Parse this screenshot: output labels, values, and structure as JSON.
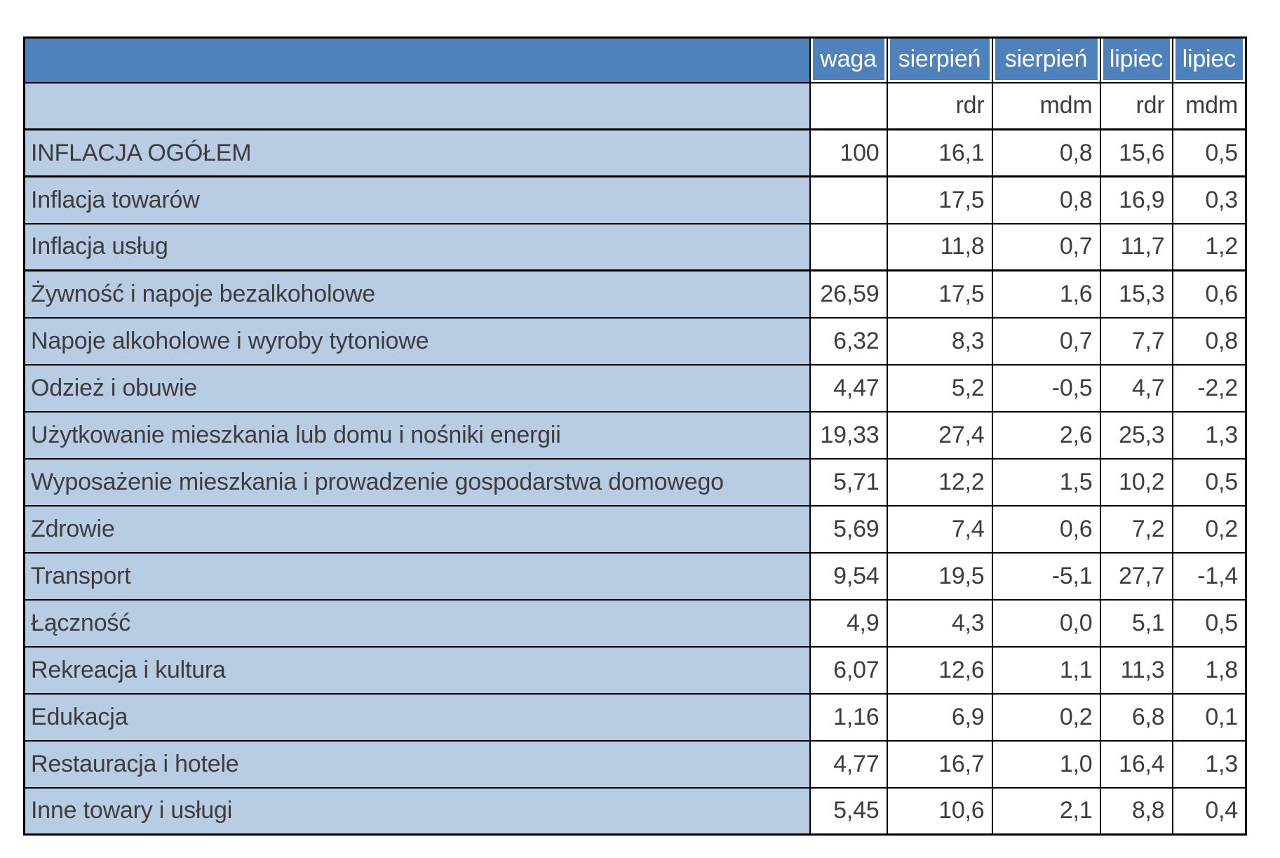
{
  "chart_data": {
    "type": "table",
    "description": "Polish CPI inflation table: component weights and rdr (year-over-year) / mdm (month-over-month) changes for sierpień (August) and lipiec (July)",
    "column_groups": [
      "waga",
      "sierpień",
      "sierpień",
      "lipiec",
      "lipiec"
    ],
    "column_measures": [
      "",
      "rdr",
      "mdm",
      "rdr",
      "mdm"
    ],
    "rows": [
      {
        "label": "INFLACJA OGÓŁEM",
        "cells": [
          "100",
          "16,1",
          "0,8",
          "15,6",
          "0,5"
        ],
        "thick_bottom": true
      },
      {
        "label": "Inflacja towarów",
        "cells": [
          "",
          "17,5",
          "0,8",
          "16,9",
          "0,3"
        ],
        "thick_bottom": false
      },
      {
        "label": "Inflacja usług",
        "cells": [
          "",
          "11,8",
          "0,7",
          "11,7",
          "1,2"
        ],
        "thick_bottom": true
      },
      {
        "label": "Żywność i napoje bezalkoholowe",
        "cells": [
          "26,59",
          "17,5",
          "1,6",
          "15,3",
          "0,6"
        ],
        "thick_bottom": false
      },
      {
        "label": "Napoje alkoholowe i wyroby tytoniowe",
        "cells": [
          "6,32",
          "8,3",
          "0,7",
          "7,7",
          "0,8"
        ],
        "thick_bottom": false
      },
      {
        "label": "Odzież i obuwie",
        "cells": [
          "4,47",
          "5,2",
          "-0,5",
          "4,7",
          "-2,2"
        ],
        "thick_bottom": false
      },
      {
        "label": "Użytkowanie mieszkania lub domu i nośniki energii",
        "cells": [
          "19,33",
          "27,4",
          "2,6",
          "25,3",
          "1,3"
        ],
        "thick_bottom": false
      },
      {
        "label": "Wyposażenie mieszkania i prowadzenie gospodarstwa domowego",
        "cells": [
          "5,71",
          "12,2",
          "1,5",
          "10,2",
          "0,5"
        ],
        "thick_bottom": false
      },
      {
        "label": "Zdrowie",
        "cells": [
          "5,69",
          "7,4",
          "0,6",
          "7,2",
          "0,2"
        ],
        "thick_bottom": false
      },
      {
        "label": "Transport",
        "cells": [
          "9,54",
          "19,5",
          "-5,1",
          "27,7",
          "-1,4"
        ],
        "thick_bottom": false
      },
      {
        "label": "Łączność",
        "cells": [
          "4,9",
          "4,3",
          "0,0",
          "5,1",
          "0,5"
        ],
        "thick_bottom": false
      },
      {
        "label": "Rekreacja i kultura",
        "cells": [
          "6,07",
          "12,6",
          "1,1",
          "11,3",
          "1,8"
        ],
        "thick_bottom": false
      },
      {
        "label": "Edukacja",
        "cells": [
          "1,16",
          "6,9",
          "0,2",
          "6,8",
          "0,1"
        ],
        "thick_bottom": false
      },
      {
        "label": "Restauracja i hotele",
        "cells": [
          "4,77",
          "16,7",
          "1,0",
          "16,4",
          "1,3"
        ],
        "thick_bottom": false
      },
      {
        "label": "Inne towary i usługi",
        "cells": [
          "5,45",
          "10,6",
          "2,1",
          "8,8",
          "0,4"
        ],
        "thick_bottom": false
      }
    ],
    "colors": {
      "header_bg": "#4f81bd",
      "label_bg": "#b8cce4",
      "header_text": "#ffffff",
      "body_text": "#3d3d3d",
      "border": "#000000",
      "value_cell_bg": "#ffffff"
    },
    "layout_hints": {
      "grid": true,
      "thick_borders_after": [
        "header rows",
        "INFLACJA OGÓŁEM",
        "Inflacja usług"
      ]
    }
  }
}
